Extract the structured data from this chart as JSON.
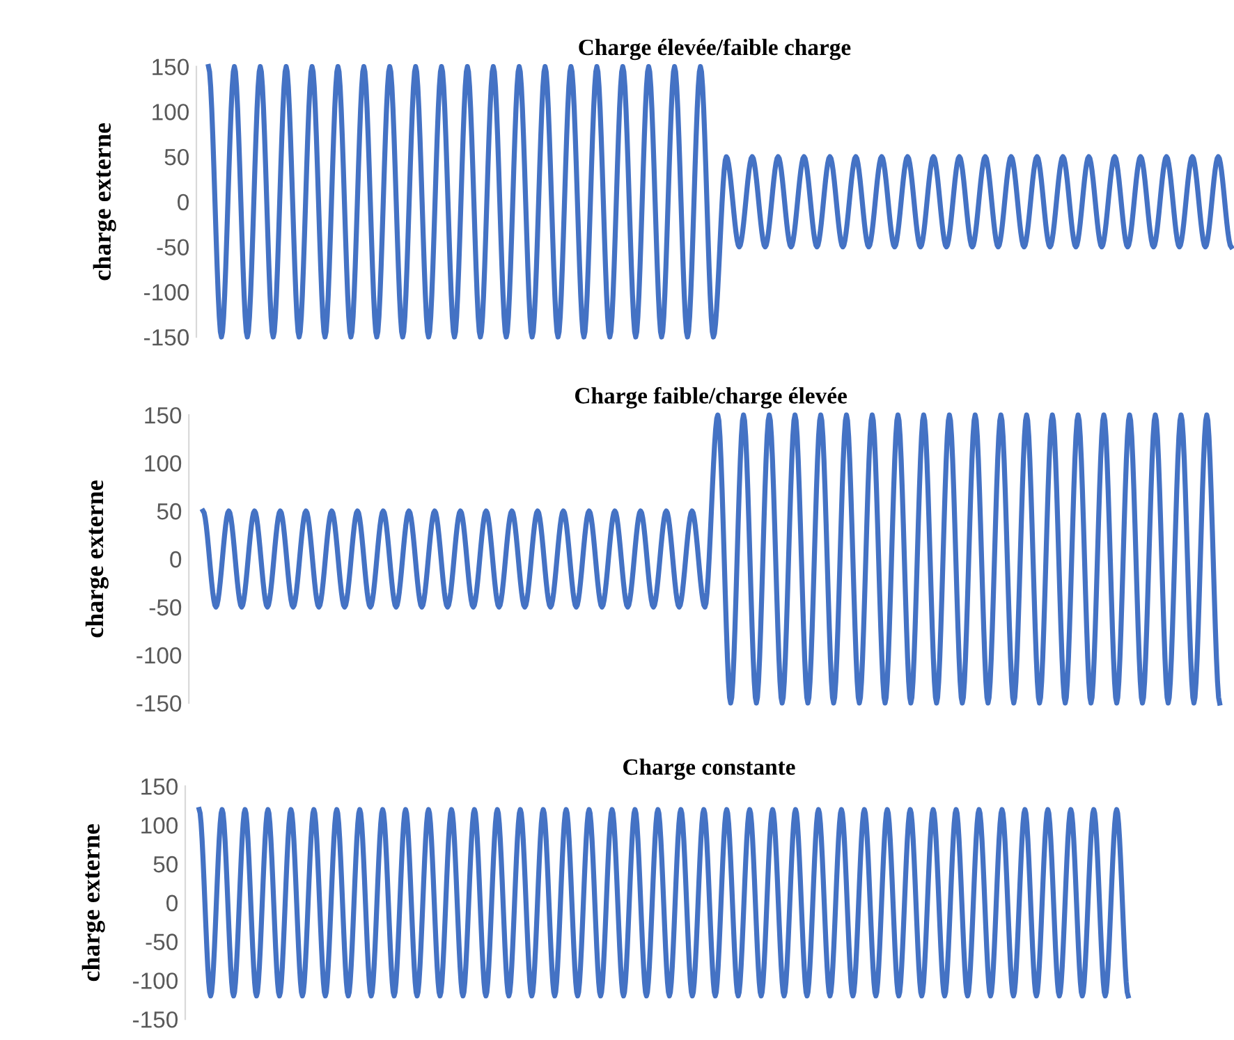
{
  "chart_data": [
    {
      "type": "line",
      "title": "Charge élevée/faible charge",
      "ylabel": "charge externe",
      "tick_labels": "y",
      "ylim": [
        -150,
        150
      ],
      "yticks": [
        -150,
        -100,
        -50,
        0,
        50,
        100,
        150
      ],
      "categories": [
        null,
        null,
        null,
        null,
        null,
        null,
        null,
        null,
        null,
        null,
        null,
        null,
        null,
        null,
        null,
        null,
        null,
        null,
        null,
        null,
        null,
        null,
        null,
        null,
        null,
        null,
        null,
        null,
        null,
        null,
        null,
        null,
        null,
        null,
        null,
        null,
        null,
        null,
        null,
        null,
        null,
        null,
        null,
        null,
        null,
        null,
        null,
        null,
        null,
        null,
        null,
        null,
        null,
        null,
        null,
        null,
        null,
        null,
        null,
        null,
        null,
        null,
        null,
        null,
        null,
        null,
        null,
        null,
        null,
        null,
        null,
        null,
        null,
        null,
        null,
        null,
        null,
        null,
        null,
        null
      ],
      "series": [
        {
          "color": "#4472c4",
          "values": [
            150,
            -150,
            150,
            -150,
            150,
            -150,
            150,
            -150,
            150,
            -150,
            150,
            -150,
            150,
            -150,
            150,
            -150,
            150,
            -150,
            150,
            -150,
            150,
            -150,
            150,
            -150,
            150,
            -150,
            150,
            -150,
            150,
            -150,
            150,
            -150,
            150,
            -150,
            150,
            -150,
            150,
            -150,
            150,
            -150,
            50,
            -50,
            50,
            -50,
            50,
            -50,
            50,
            -50,
            50,
            -50,
            50,
            -50,
            50,
            -50,
            50,
            -50,
            50,
            -50,
            50,
            -50,
            50,
            -50,
            50,
            -50,
            50,
            -50,
            50,
            -50,
            50,
            -50,
            50,
            -50,
            50,
            -50,
            50,
            -50,
            50,
            -50,
            50,
            -50
          ]
        }
      ]
    },
    {
      "type": "line",
      "title": "Charge faible/charge élevée",
      "ylabel": "charge externe",
      "tick_labels": "y",
      "ylim": [
        -150,
        150
      ],
      "yticks": [
        -150,
        -100,
        -50,
        0,
        50,
        100,
        150
      ],
      "categories": [
        null,
        null,
        null,
        null,
        null,
        null,
        null,
        null,
        null,
        null,
        null,
        null,
        null,
        null,
        null,
        null,
        null,
        null,
        null,
        null,
        null,
        null,
        null,
        null,
        null,
        null,
        null,
        null,
        null,
        null,
        null,
        null,
        null,
        null,
        null,
        null,
        null,
        null,
        null,
        null,
        null,
        null,
        null,
        null,
        null,
        null,
        null,
        null,
        null,
        null,
        null,
        null,
        null,
        null,
        null,
        null,
        null,
        null,
        null,
        null,
        null,
        null,
        null,
        null,
        null,
        null,
        null,
        null,
        null,
        null,
        null,
        null,
        null,
        null,
        null,
        null,
        null,
        null,
        null,
        null
      ],
      "series": [
        {
          "color": "#4472c4",
          "values": [
            50,
            -50,
            50,
            -50,
            50,
            -50,
            50,
            -50,
            50,
            -50,
            50,
            -50,
            50,
            -50,
            50,
            -50,
            50,
            -50,
            50,
            -50,
            50,
            -50,
            50,
            -50,
            50,
            -50,
            50,
            -50,
            50,
            -50,
            50,
            -50,
            50,
            -50,
            50,
            -50,
            50,
            -50,
            50,
            -50,
            150,
            -150,
            150,
            -150,
            150,
            -150,
            150,
            -150,
            150,
            -150,
            150,
            -150,
            150,
            -150,
            150,
            -150,
            150,
            -150,
            150,
            -150,
            150,
            -150,
            150,
            -150,
            150,
            -150,
            150,
            -150,
            150,
            -150,
            150,
            -150,
            150,
            -150,
            150,
            -150,
            150,
            -150,
            150,
            -150
          ]
        }
      ]
    },
    {
      "type": "line",
      "title": "Charge constante",
      "ylabel": "charge externe",
      "tick_labels": "y",
      "ylim": [
        -150,
        150
      ],
      "yticks": [
        -150,
        -100,
        -50,
        0,
        50,
        100,
        150
      ],
      "categories": [
        null,
        null,
        null,
        null,
        null,
        null,
        null,
        null,
        null,
        null,
        null,
        null,
        null,
        null,
        null,
        null,
        null,
        null,
        null,
        null,
        null,
        null,
        null,
        null,
        null,
        null,
        null,
        null,
        null,
        null,
        null,
        null,
        null,
        null,
        null,
        null,
        null,
        null,
        null,
        null,
        null,
        null,
        null,
        null,
        null,
        null,
        null,
        null,
        null,
        null,
        null,
        null,
        null,
        null,
        null,
        null,
        null,
        null,
        null,
        null,
        null,
        null,
        null,
        null,
        null,
        null,
        null,
        null,
        null,
        null,
        null,
        null,
        null,
        null,
        null,
        null,
        null,
        null,
        null,
        null,
        null,
        null
      ],
      "series": [
        {
          "color": "#4472c4",
          "values": [
            120,
            -120,
            120,
            -120,
            120,
            -120,
            120,
            -120,
            120,
            -120,
            120,
            -120,
            120,
            -120,
            120,
            -120,
            120,
            -120,
            120,
            -120,
            120,
            -120,
            120,
            -120,
            120,
            -120,
            120,
            -120,
            120,
            -120,
            120,
            -120,
            120,
            -120,
            120,
            -120,
            120,
            -120,
            120,
            -120,
            120,
            -120,
            120,
            -120,
            120,
            -120,
            120,
            -120,
            120,
            -120,
            120,
            -120,
            120,
            -120,
            120,
            -120,
            120,
            -120,
            120,
            -120,
            120,
            -120,
            120,
            -120,
            120,
            -120,
            120,
            -120,
            120,
            -120,
            120,
            -120,
            120,
            -120,
            120,
            -120,
            120,
            -120,
            120,
            -120,
            120,
            -120
          ]
        }
      ]
    }
  ]
}
